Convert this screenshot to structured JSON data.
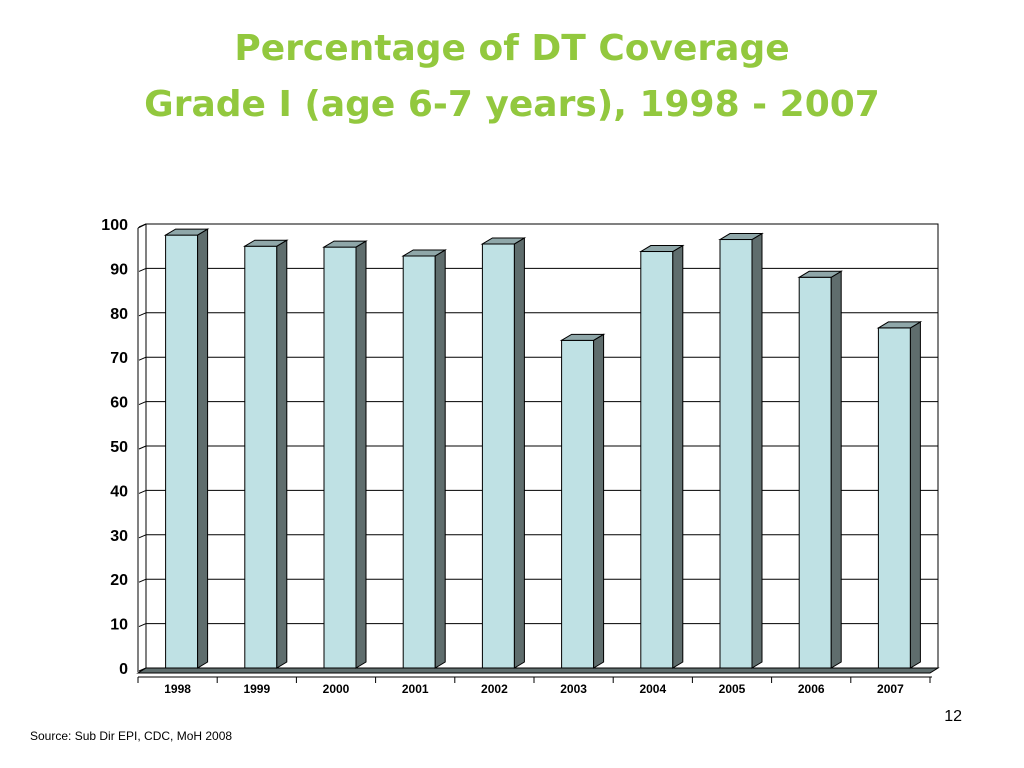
{
  "slide": {
    "title_line1": "Percentage of DT Coverage",
    "title_line2": "Grade I (age 6-7 years), 1998 - 2007",
    "source": "Source: Sub Dir EPI, CDC, MoH  2008",
    "page_number": "12"
  },
  "colors": {
    "title": "#92c83e",
    "bar_front": "#bfe1e4",
    "bar_side": "#5f6d6d",
    "bar_top": "#8fa7a9"
  },
  "chart_data": {
    "type": "bar",
    "title": "Percentage of DT Coverage Grade I (age 6-7 years), 1998 - 2007",
    "xlabel": "",
    "ylabel": "",
    "categories": [
      "1998",
      "1999",
      "2000",
      "2001",
      "2002",
      "2003",
      "2004",
      "2005",
      "2006",
      "2007"
    ],
    "values": [
      97.5,
      95,
      94.8,
      92.8,
      95.5,
      73.8,
      93.8,
      96.5,
      88,
      76.6
    ],
    "ylim": [
      0,
      100
    ],
    "yticks": [
      "0",
      "10",
      "20",
      "30",
      "40",
      "50",
      "60",
      "70",
      "80",
      "90",
      "100"
    ],
    "grid": true,
    "legend": "none",
    "style": "3d"
  }
}
